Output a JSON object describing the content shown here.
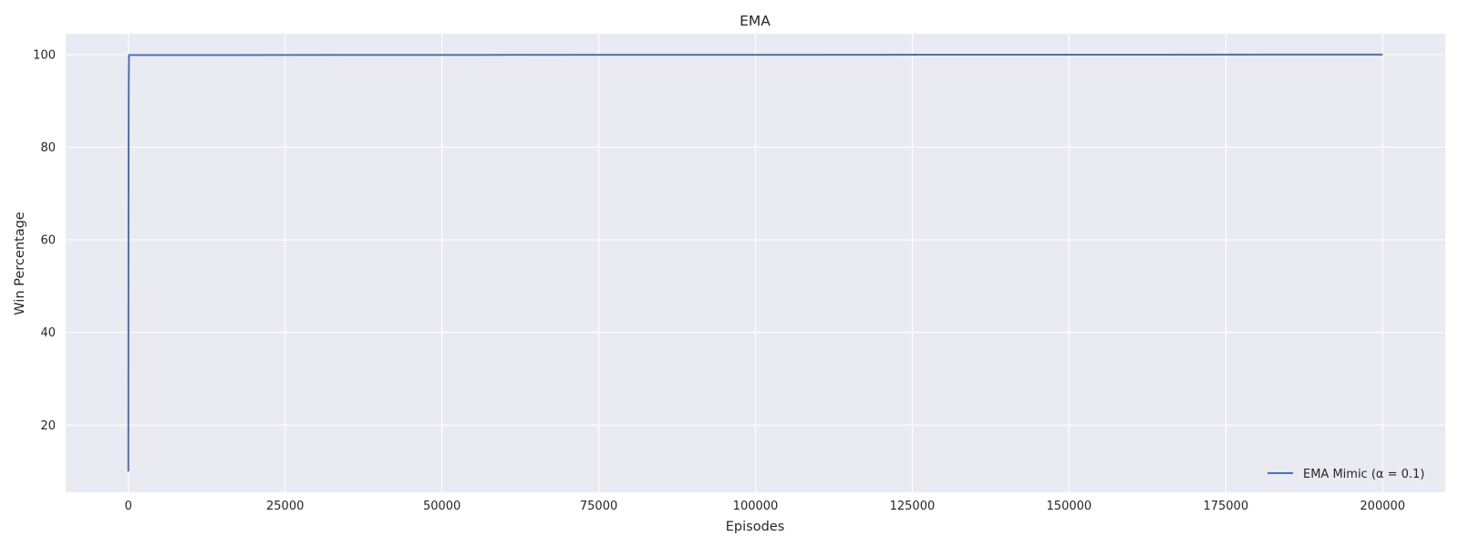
{
  "chart_data": {
    "type": "line",
    "title": "EMA",
    "xlabel": "Episodes",
    "ylabel": "Win Percentage",
    "xlim": [
      -10000,
      210000
    ],
    "ylim": [
      5.5,
      104.5
    ],
    "xticks": [
      0,
      25000,
      50000,
      75000,
      100000,
      125000,
      150000,
      175000,
      200000
    ],
    "yticks": [
      20,
      40,
      60,
      80,
      100
    ],
    "grid": true,
    "legend_position": "bottom-right",
    "series": [
      {
        "name": "EMA Mimic (α = 0.1)",
        "color": "#4c72b0",
        "x": [
          0,
          10,
          20,
          30,
          40,
          60,
          100,
          200000
        ],
        "y": [
          10,
          34.4,
          55.6,
          71.8,
          83.0,
          94.1,
          99.9,
          100
        ]
      }
    ]
  }
}
